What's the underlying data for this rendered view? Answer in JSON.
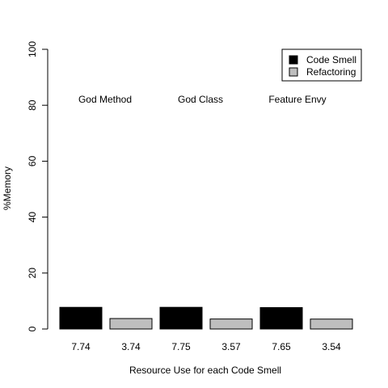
{
  "chart_data": {
    "type": "bar",
    "xlabel": "Resource Use for each Code Smell",
    "ylabel": "%Memory",
    "ylim": [
      0,
      100
    ],
    "yticks": [
      "0",
      "20",
      "40",
      "60",
      "80",
      "100"
    ],
    "groups": [
      "God Method",
      "God Class",
      "Feature Envy"
    ],
    "series": [
      {
        "name": "Code Smell",
        "color": "#000000",
        "values": [
          7.74,
          7.75,
          7.65
        ]
      },
      {
        "name": "Refactoring",
        "color": "#bebebe",
        "values": [
          3.74,
          3.57,
          3.54
        ]
      }
    ],
    "value_labels": [
      "7.74",
      "3.74",
      "7.75",
      "3.57",
      "7.65",
      "3.54"
    ],
    "legend_position": "top-right",
    "grid": false
  }
}
